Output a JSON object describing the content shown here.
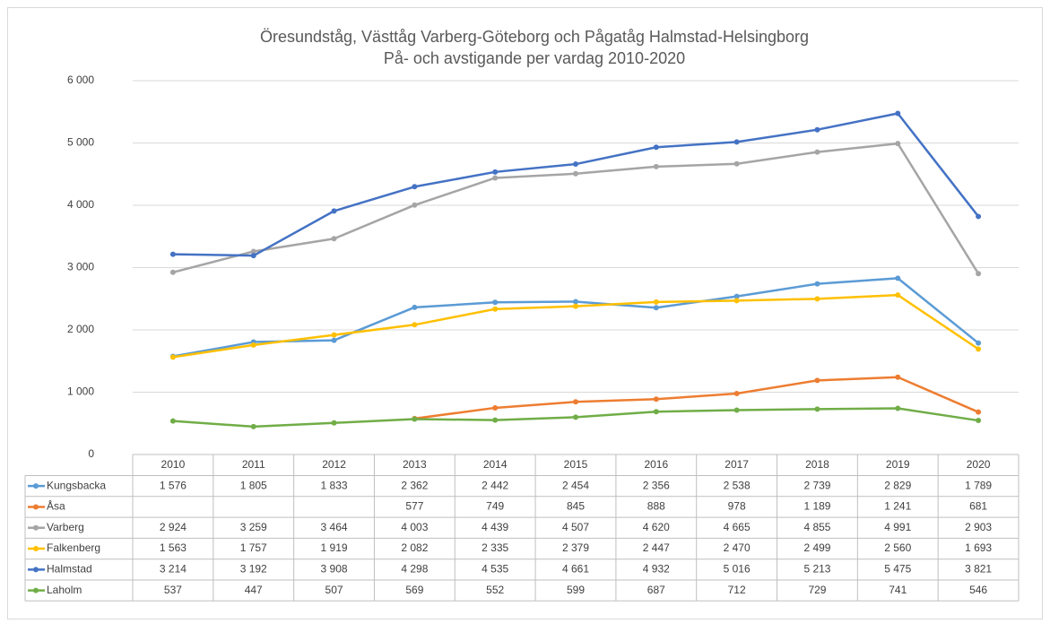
{
  "chart_data": {
    "type": "line",
    "title": "Öresundståg, Västtåg Varberg-Göteborg och Pågatåg Halmstad-Helsingborg",
    "subtitle": "På- och avstigande per vardag 2010-2020",
    "categories": [
      "2010",
      "2011",
      "2012",
      "2013",
      "2014",
      "2015",
      "2016",
      "2017",
      "2018",
      "2019",
      "2020"
    ],
    "ylim": [
      0,
      6000
    ],
    "yticks": [
      0,
      {
        "value": 1000,
        "label": "1 000"
      },
      {
        "value": 2000,
        "label": "2 000"
      },
      {
        "value": 3000,
        "label": "3 000"
      },
      {
        "value": 4000,
        "label": "4 000"
      },
      {
        "value": 5000,
        "label": "5 000"
      },
      {
        "value": 6000,
        "label": "6 000"
      }
    ],
    "grid": true,
    "series": [
      {
        "name": "Kungsbacka",
        "color": "#5b9bd5",
        "values": [
          1576,
          1805,
          1833,
          2362,
          2442,
          2454,
          2356,
          2538,
          2739,
          2829,
          1789
        ],
        "value_labels": [
          "1 576",
          "1 805",
          "1 833",
          "2 362",
          "2 442",
          "2 454",
          "2 356",
          "2 538",
          "2 739",
          "2 829",
          "1 789"
        ]
      },
      {
        "name": "Åsa",
        "color": "#ed7d31",
        "values": [
          null,
          null,
          null,
          577,
          749,
          845,
          888,
          978,
          1189,
          1241,
          681
        ],
        "value_labels": [
          null,
          null,
          null,
          "577",
          "749",
          "845",
          "888",
          "978",
          "1 189",
          "1 241",
          "681"
        ]
      },
      {
        "name": "Varberg",
        "color": "#a5a5a5",
        "values": [
          2924,
          3259,
          3464,
          4003,
          4439,
          4507,
          4620,
          4665,
          4855,
          4991,
          2903
        ],
        "value_labels": [
          "2 924",
          "3 259",
          "3 464",
          "4 003",
          "4 439",
          "4 507",
          "4 620",
          "4 665",
          "4 855",
          "4 991",
          "2 903"
        ]
      },
      {
        "name": "Falkenberg",
        "color": "#ffc000",
        "values": [
          1563,
          1757,
          1919,
          2082,
          2335,
          2379,
          2447,
          2470,
          2499,
          2560,
          1693
        ],
        "value_labels": [
          "1 563",
          "1 757",
          "1 919",
          "2 082",
          "2 335",
          "2 379",
          "2 447",
          "2 470",
          "2 499",
          "2 560",
          "1 693"
        ]
      },
      {
        "name": "Halmstad",
        "color": "#4472c4",
        "values": [
          3214,
          3192,
          3908,
          4298,
          4535,
          4661,
          4932,
          5016,
          5213,
          5475,
          3821
        ],
        "value_labels": [
          "3 214",
          "3 192",
          "3 908",
          "4 298",
          "4 535",
          "4 661",
          "4 932",
          "5 016",
          "5 213",
          "5 475",
          "3 821"
        ]
      },
      {
        "name": "Laholm",
        "color": "#70ad47",
        "values": [
          537,
          447,
          507,
          569,
          552,
          599,
          687,
          712,
          729,
          741,
          546
        ],
        "value_labels": [
          "537",
          "447",
          "507",
          "569",
          "552",
          "599",
          "687",
          "712",
          "729",
          "741",
          "546"
        ]
      }
    ]
  }
}
